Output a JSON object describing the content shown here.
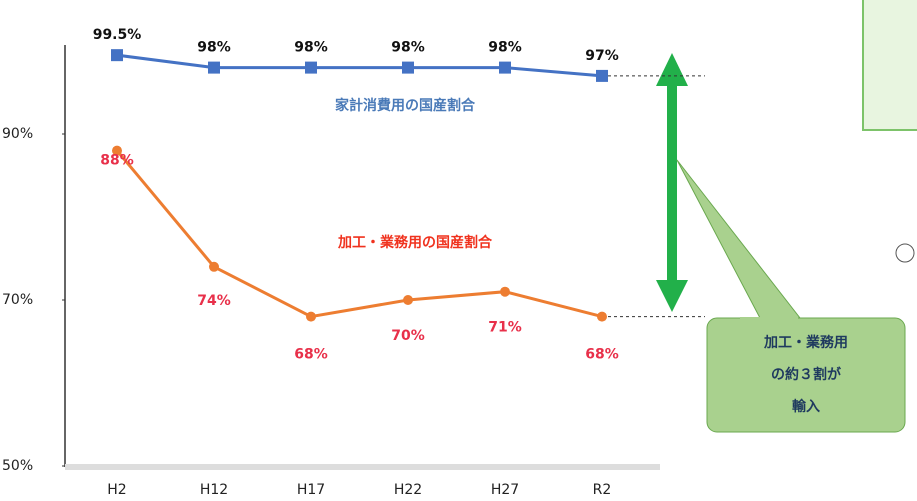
{
  "chart_data": {
    "type": "line",
    "categories": [
      "H2",
      "H12",
      "H17",
      "H22",
      "H27",
      "R2"
    ],
    "series": [
      {
        "name": "家計消費用の国産割合",
        "color": "#4472c4",
        "values": [
          99.5,
          98,
          98,
          98,
          98,
          97
        ],
        "value_labels": [
          "99.5%",
          "98%",
          "98%",
          "98%",
          "98%",
          "97%"
        ]
      },
      {
        "name": "加工・業務用の国産割合",
        "color": "#ed7d31",
        "values": [
          88,
          74,
          68,
          70,
          71,
          68
        ],
        "value_labels": [
          "88%",
          "74%",
          "68%",
          "70%",
          "71%",
          "68%"
        ]
      }
    ],
    "ylim": [
      50,
      101
    ],
    "yticks": [
      {
        "value": 50,
        "label": "50%"
      },
      {
        "value": 70,
        "label": "70%"
      },
      {
        "value": 90,
        "label": "90%"
      }
    ],
    "grid": false,
    "callout": [
      "加工・業務用",
      "の約３割が",
      "輸入"
    ]
  }
}
